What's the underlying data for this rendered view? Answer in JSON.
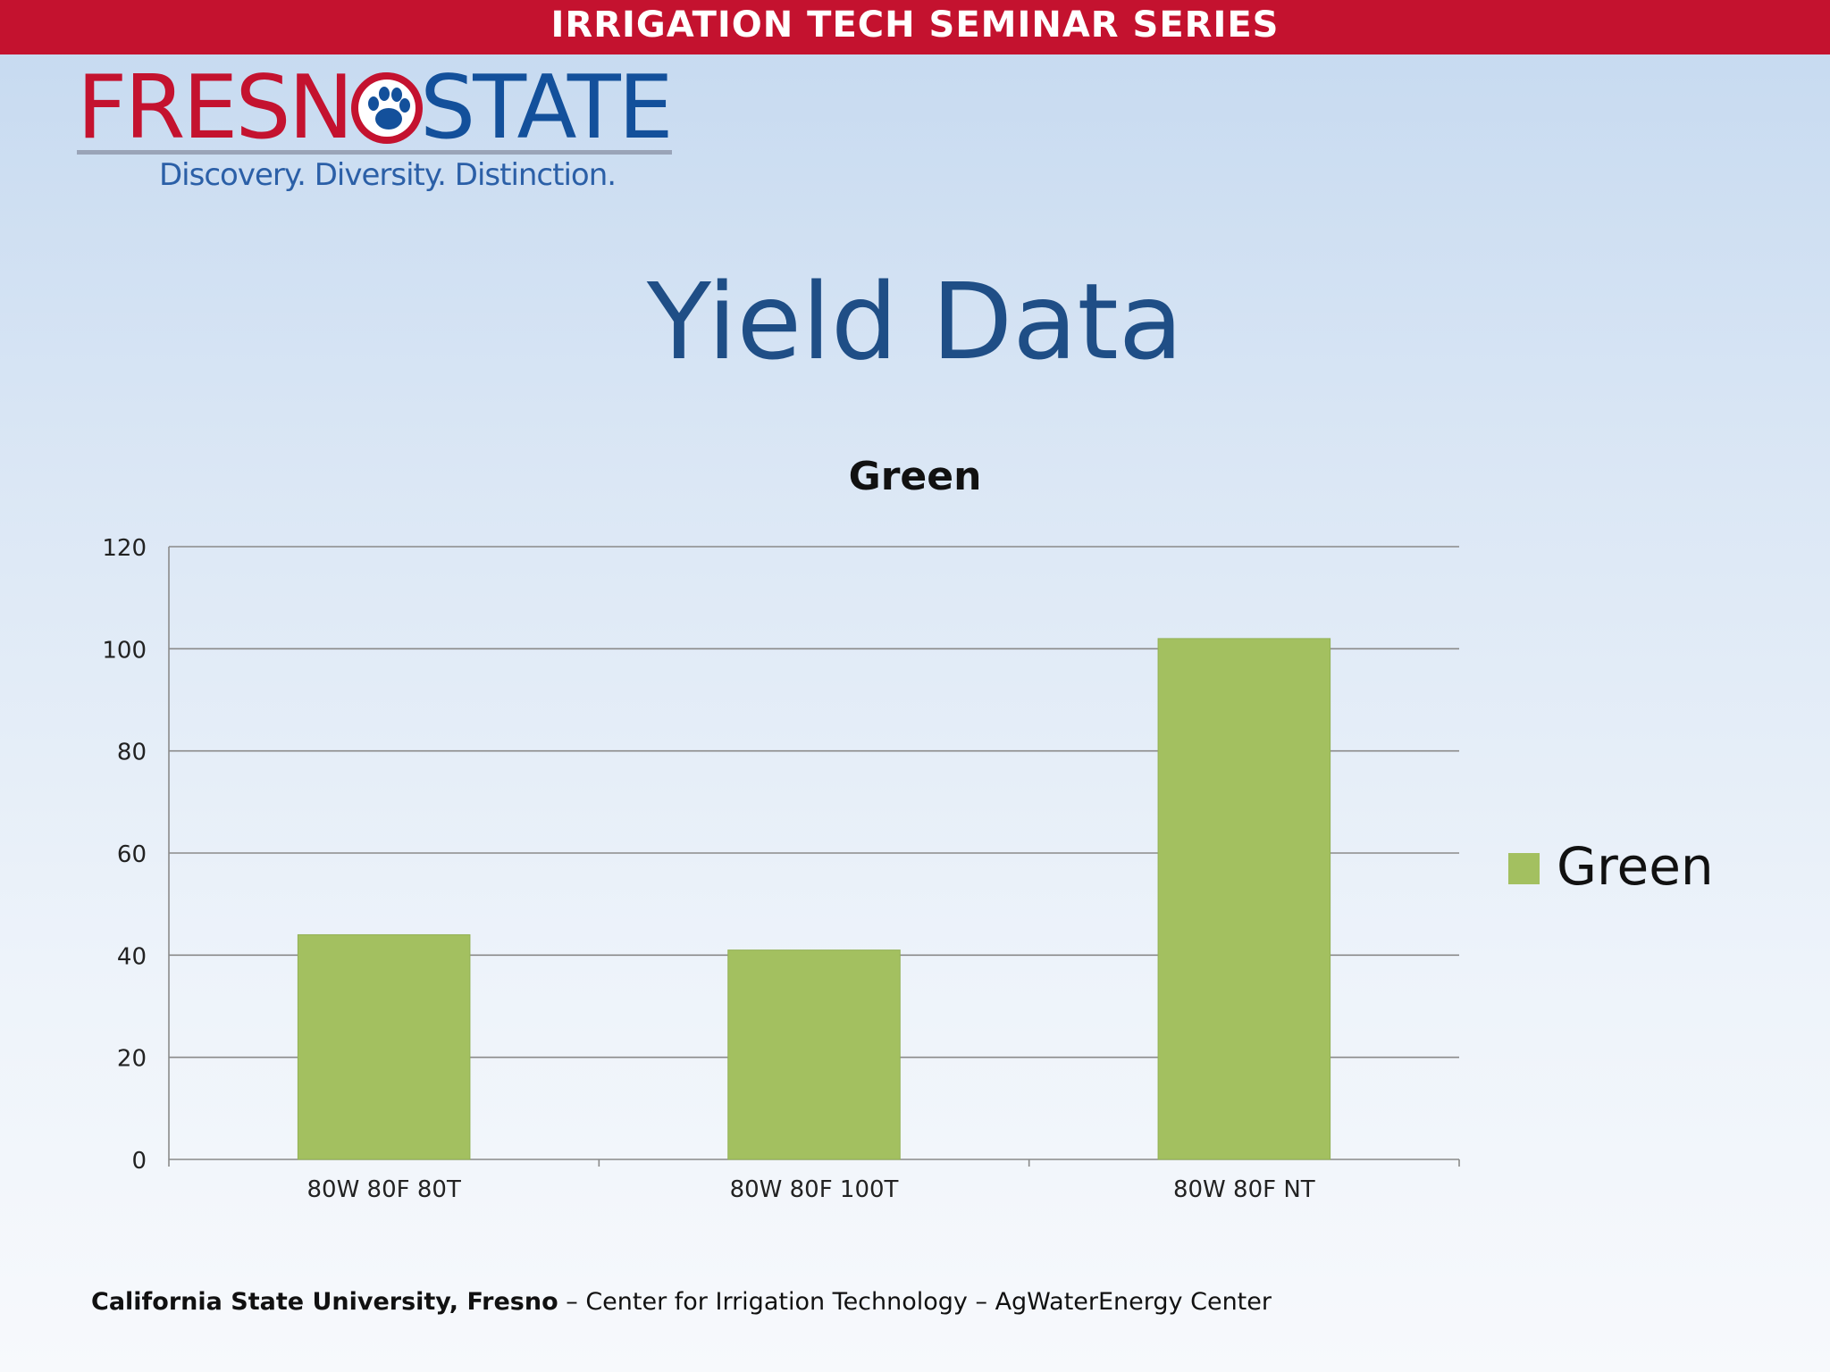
{
  "banner": {
    "text": "IRRIGATION TECH SEMINAR SERIES"
  },
  "logo": {
    "word_left": "FRESNO",
    "word_right": "STATE",
    "tagline": "Discovery. Diversity. Distinction.",
    "colors": {
      "red": "#c4122f",
      "blue": "#13509b"
    },
    "icon": "paw-icon"
  },
  "slide": {
    "title": "Yield Data"
  },
  "chart_data": {
    "type": "bar",
    "title": "Green",
    "categories": [
      "80W 80F 80T",
      "80W 80F 100T",
      "80W 80F NT"
    ],
    "series": [
      {
        "name": "Green",
        "values": [
          44,
          41,
          102
        ],
        "color": "#a3c060"
      }
    ],
    "ylim": [
      0,
      120
    ],
    "yticks": [
      0,
      20,
      40,
      60,
      80,
      100,
      120
    ],
    "grid": true,
    "legend": "right",
    "xlabel": "",
    "ylabel": ""
  },
  "footer": {
    "bold": "California State University, Fresno",
    "rest": " – Center for Irrigation Technology – AgWaterEnergy Center"
  }
}
